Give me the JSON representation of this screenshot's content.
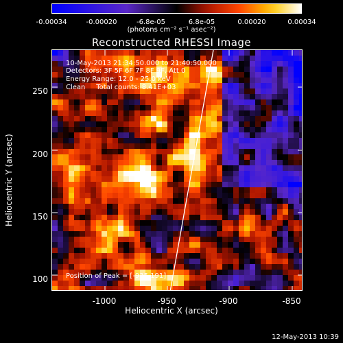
{
  "colorbar": {
    "ticks": [
      "-0.00034",
      "-0.00020",
      "-6.8e-05",
      "6.8e-05",
      "0.00020",
      "0.00034"
    ],
    "units": "(photons cm⁻² s⁻¹ asec⁻²)"
  },
  "title": "Reconstructed RHESSI Image",
  "info": {
    "time": "10-May-2013 21:34:50.000 to 21:40:50.000",
    "detectors": "Detectors: 3F 5F 6F 7F 8F 9F, Att 0",
    "energy": "Energy Range: 12.0 - 25.0 keV",
    "method": "Clean     Total counts: 8.41E+03"
  },
  "axes": {
    "xlabel": "Heliocentric X (arcsec)",
    "ylabel": "Heliocentric Y (arcsec)",
    "xticks": [
      "-1000",
      "-950",
      "-900",
      "-850"
    ],
    "yticks": [
      "250",
      "200",
      "150",
      "100"
    ]
  },
  "peak": "Position of Peak = [-935,191]",
  "timestamp": "12-May-2013 10:39",
  "colors": {
    "limb": "#ffffff",
    "background": "#000000"
  }
}
